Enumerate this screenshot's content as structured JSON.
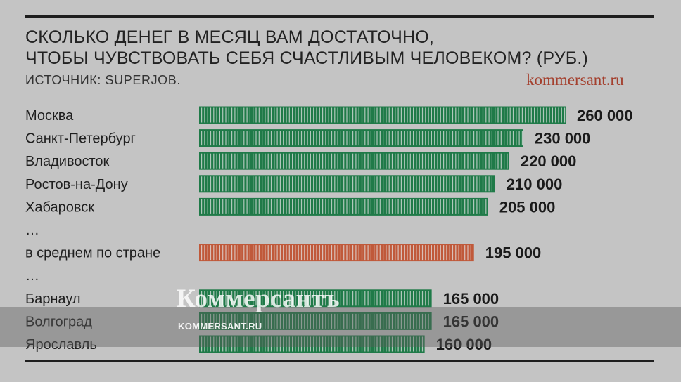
{
  "header": {
    "title_line1": "СКОЛЬКО ДЕНЕГ В МЕСЯЦ ВАМ ДОСТАТОЧНО,",
    "title_line2": "ЧТОБЫ ЧУВСТВОВАТЬ СЕБЯ СЧАСТЛИВЫМ ЧЕЛОВЕКОМ? (РУБ.)",
    "source": "ИСТОЧНИК: SUPERJOB.",
    "brand": "kommersant.ru"
  },
  "watermark": {
    "name": "Коммерсантъ",
    "url": "KOMMERSANT.RU"
  },
  "chart_data": {
    "type": "bar",
    "orientation": "horizontal",
    "title": "СКОЛЬКО ДЕНЕГ В МЕСЯЦ ВАМ ДОСТАТОЧНО, ЧТОБЫ ЧУВСТВОВАТЬ СЕБЯ СЧАСТЛИВЫМ ЧЕЛОВЕКОМ? (РУБ.)",
    "rows": [
      {
        "label": "Москва",
        "value": 260000,
        "value_label": "260 000",
        "kind": "city"
      },
      {
        "label": "Санкт-Петербург",
        "value": 230000,
        "value_label": "230 000",
        "kind": "city"
      },
      {
        "label": "Владивосток",
        "value": 220000,
        "value_label": "220 000",
        "kind": "city"
      },
      {
        "label": "Ростов-на-Дону",
        "value": 210000,
        "value_label": "210 000",
        "kind": "city"
      },
      {
        "label": "Хабаровск",
        "value": 205000,
        "value_label": "205 000",
        "kind": "city"
      },
      {
        "label": "…",
        "value": null,
        "value_label": "",
        "kind": "gap"
      },
      {
        "label": "в среднем по стране",
        "value": 195000,
        "value_label": "195 000",
        "kind": "average"
      },
      {
        "label": "…",
        "value": null,
        "value_label": "",
        "kind": "gap"
      },
      {
        "label": "Барнаул",
        "value": 165000,
        "value_label": "165 000",
        "kind": "city"
      },
      {
        "label": "Волгоград",
        "value": 165000,
        "value_label": "165 000",
        "kind": "city"
      },
      {
        "label": "Ярославль",
        "value": 160000,
        "value_label": "160 000",
        "kind": "city"
      }
    ],
    "colors": {
      "city": "#1f7a48",
      "average": "#c0593a",
      "stripe": "#e3e3e3"
    }
  }
}
